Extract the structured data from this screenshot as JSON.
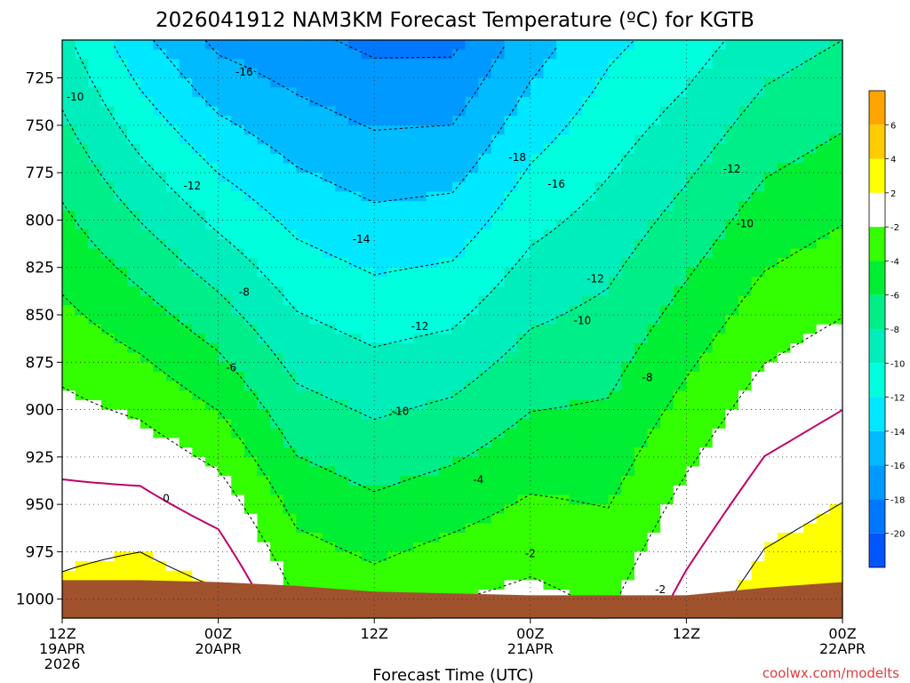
{
  "title": "2026041912 NAM3KM Forecast Temperature (ºC) for KGTB",
  "credit": "coolwx.com/modelts",
  "chart_data": {
    "type": "heatmap",
    "title": "2026041912 NAM3KM Forecast Temperature (ºC) for KGTB",
    "xlabel": "Forecast Time (UTC)",
    "ylabel": "",
    "x_hours": [
      0,
      6,
      12,
      18,
      24,
      30,
      36,
      42,
      48,
      54,
      60
    ],
    "x_ticks": [
      {
        "hour": 0,
        "lines": [
          "12Z",
          "19APR",
          "2026"
        ]
      },
      {
        "hour": 12,
        "lines": [
          "00Z",
          "20APR"
        ]
      },
      {
        "hour": 24,
        "lines": [
          "12Z"
        ]
      },
      {
        "hour": 36,
        "lines": [
          "00Z",
          "21APR"
        ]
      },
      {
        "hour": 48,
        "lines": [
          "12Z"
        ]
      },
      {
        "hour": 60,
        "lines": [
          "00Z",
          "22APR"
        ]
      }
    ],
    "y_ticks": [
      725,
      750,
      775,
      800,
      825,
      850,
      875,
      900,
      925,
      950,
      975,
      1000
    ],
    "ylim": [
      1010,
      705
    ],
    "xlim": [
      0,
      60
    ],
    "grid": true,
    "surface_pressure_hPa": [
      990,
      990,
      991,
      993,
      996,
      997,
      998,
      998,
      998,
      994,
      991
    ],
    "temperature_profiles": [
      {
        "pressure": [
          705,
          1010
        ],
        "temp": [
          -9.5,
          3.0
        ]
      },
      {
        "pressure": [
          705,
          1010
        ],
        "temp": [
          -13.5,
          4.0
        ]
      },
      {
        "pressure": [
          705,
          1010
        ],
        "temp": [
          -16.5,
          3.0
        ]
      },
      {
        "pressure": [
          705,
          1010
        ],
        "temp": [
          -17.5,
          -1.5
        ]
      },
      {
        "pressure": [
          705,
          1010
        ],
        "temp": [
          -18.5,
          -2.5
        ]
      },
      {
        "pressure": [
          705,
          1010
        ],
        "temp": [
          -18.5,
          -1.5
        ]
      },
      {
        "pressure": [
          705,
          1010
        ],
        "temp": [
          -15.0,
          -1.0
        ]
      },
      {
        "pressure": [
          705,
          1010
        ],
        "temp": [
          -12.5,
          -2.0
        ]
      },
      {
        "pressure": [
          705,
          1010
        ],
        "temp": [
          -11.0,
          1.0
        ]
      },
      {
        "pressure": [
          705,
          1010
        ],
        "temp": [
          -9.0,
          3.5
        ]
      },
      {
        "pressure": [
          705,
          1010
        ],
        "temp": [
          -8.0,
          4.5
        ]
      }
    ],
    "contour_levels": [
      -18,
      -16,
      -14,
      -12,
      -10,
      -8,
      -6,
      -4,
      -2,
      0,
      2,
      4,
      6,
      8
    ],
    "contour_labels": [
      {
        "text": "-10",
        "hour": 1.0,
        "pressure": 735
      },
      {
        "text": "-16",
        "hour": 14.0,
        "pressure": 722
      },
      {
        "text": "-12",
        "hour": 10.0,
        "pressure": 782
      },
      {
        "text": "-18",
        "hour": 35.0,
        "pressure": 767
      },
      {
        "text": "-16",
        "hour": 38.0,
        "pressure": 781
      },
      {
        "text": "-14",
        "hour": 23.0,
        "pressure": 810
      },
      {
        "text": "-12",
        "hour": 51.5,
        "pressure": 773
      },
      {
        "text": "-10",
        "hour": 52.5,
        "pressure": 802
      },
      {
        "text": "-8",
        "hour": 14.0,
        "pressure": 838
      },
      {
        "text": "-12",
        "hour": 27.5,
        "pressure": 856
      },
      {
        "text": "-12",
        "hour": 41.0,
        "pressure": 831
      },
      {
        "text": "-10",
        "hour": 40.0,
        "pressure": 853
      },
      {
        "text": "-6",
        "hour": 13.0,
        "pressure": 878
      },
      {
        "text": "-8",
        "hour": 45.0,
        "pressure": 883
      },
      {
        "text": "-10",
        "hour": 26.0,
        "pressure": 901
      },
      {
        "text": "-4",
        "hour": 32.0,
        "pressure": 937
      },
      {
        "text": "0",
        "hour": 8.0,
        "pressure": 947
      },
      {
        "text": "-2",
        "hour": 36.0,
        "pressure": 976
      },
      {
        "text": "-2",
        "hour": 46.0,
        "pressure": 995
      }
    ],
    "colorbar": {
      "labels": [
        "6",
        "4",
        "2",
        "-2",
        "-4",
        "-6",
        "-8",
        "-10",
        "-12",
        "-14",
        "-16",
        "-18",
        "-20"
      ],
      "bands": [
        {
          "from": 6,
          "to": 8,
          "color": "#ffa500"
        },
        {
          "from": 4,
          "to": 6,
          "color": "#ffcc00"
        },
        {
          "from": 2,
          "to": 4,
          "color": "#ffff00"
        },
        {
          "from": -2,
          "to": 2,
          "color": "#ffffff"
        },
        {
          "from": -4,
          "to": -2,
          "color": "#33ff00"
        },
        {
          "from": -6,
          "to": -4,
          "color": "#00ee33"
        },
        {
          "from": -8,
          "to": -6,
          "color": "#00ee88"
        },
        {
          "from": -10,
          "to": -8,
          "color": "#00eebb"
        },
        {
          "from": -12,
          "to": -10,
          "color": "#00ffdd"
        },
        {
          "from": -14,
          "to": -12,
          "color": "#00e8ff"
        },
        {
          "from": -16,
          "to": -14,
          "color": "#00bbff"
        },
        {
          "from": -18,
          "to": -16,
          "color": "#0099ff"
        },
        {
          "from": -20,
          "to": -18,
          "color": "#0077ff"
        },
        {
          "from": -22,
          "to": -20,
          "color": "#0055ff"
        }
      ]
    },
    "colors": {
      "ground": "#a0522d",
      "freezing_line": "#c0006a",
      "contour": "#000000"
    }
  }
}
